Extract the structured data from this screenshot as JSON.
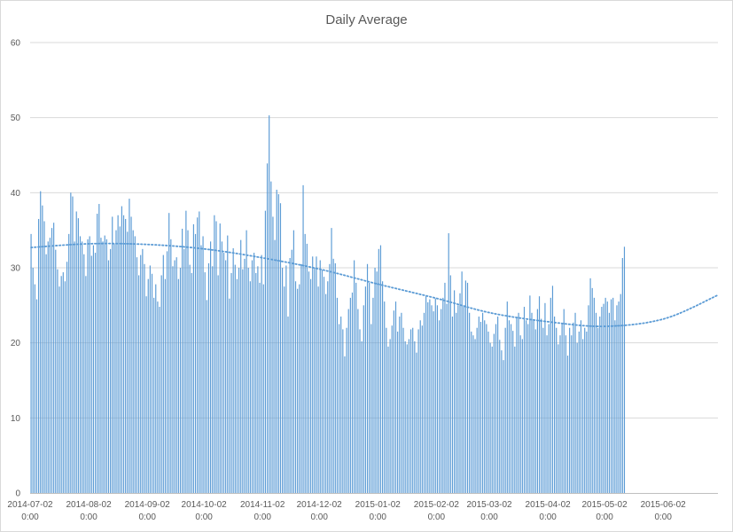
{
  "chart_data": {
    "type": "bar",
    "title": "Daily Average",
    "xlabel": "",
    "ylabel": "",
    "ylim": [
      0,
      60
    ],
    "y_ticks": [
      0,
      10,
      20,
      30,
      40,
      50,
      60
    ],
    "x_range": [
      "2014-07-02",
      "2015-06-30"
    ],
    "x_tick_labels": [
      {
        "date": "2014-07-02",
        "line1": "2014-07-02",
        "line2": "0:00"
      },
      {
        "date": "2014-08-02",
        "line1": "2014-08-02",
        "line2": "0:00"
      },
      {
        "date": "2014-09-02",
        "line1": "2014-09-02",
        "line2": "0:00"
      },
      {
        "date": "2014-10-02",
        "line1": "2014-10-02",
        "line2": "0:00"
      },
      {
        "date": "2014-11-02",
        "line1": "2014-11-02",
        "line2": "0:00"
      },
      {
        "date": "2014-12-02",
        "line1": "2014-12-02",
        "line2": "0:00"
      },
      {
        "date": "2015-01-02",
        "line1": "2015-01-02",
        "line2": "0:00"
      },
      {
        "date": "2015-02-02",
        "line1": "2015-02-02",
        "line2": "0:00"
      },
      {
        "date": "2015-03-02",
        "line1": "2015-03-02",
        "line2": "0:00"
      },
      {
        "date": "2015-04-02",
        "line1": "2015-04-02",
        "line2": "0:00"
      },
      {
        "date": "2015-05-02",
        "line1": "2015-05-02",
        "line2": "0:00"
      },
      {
        "date": "2015-06-02",
        "line1": "2015-06-02",
        "line2": "0:00"
      }
    ],
    "grid": true,
    "legend": "none",
    "bar_color": "#5b9bd5",
    "trendline": {
      "style": "dotted",
      "color": "#5b9bd5",
      "points": [
        {
          "date": "2014-07-02",
          "value": 32.7
        },
        {
          "date": "2014-08-02",
          "value": 33.2
        },
        {
          "date": "2014-09-02",
          "value": 33.1
        },
        {
          "date": "2014-10-02",
          "value": 32.5
        },
        {
          "date": "2014-11-02",
          "value": 31.3
        },
        {
          "date": "2014-12-02",
          "value": 29.8
        },
        {
          "date": "2015-01-02",
          "value": 27.8
        },
        {
          "date": "2015-02-02",
          "value": 25.9
        },
        {
          "date": "2015-03-02",
          "value": 24.0
        },
        {
          "date": "2015-04-02",
          "value": 22.8
        },
        {
          "date": "2015-05-02",
          "value": 22.2
        },
        {
          "date": "2015-06-02",
          "value": 23.2
        },
        {
          "date": "2015-06-30",
          "value": 26.3
        }
      ]
    },
    "series": [
      {
        "start_date": "2014-07-02",
        "interval": "1 day",
        "values": [
          34.5,
          30.0,
          27.8,
          25.8,
          36.5,
          40.2,
          38.3,
          36.2,
          31.8,
          33.5,
          34.0,
          35.3,
          36.0,
          32.4,
          29.8,
          27.5,
          28.9,
          29.4,
          28.2,
          30.8,
          34.5,
          40.0,
          39.5,
          33.5,
          37.5,
          36.6,
          34.2,
          33.5,
          31.8,
          28.9,
          33.8,
          34.2,
          31.6,
          33.0,
          32.0,
          37.2,
          38.5,
          34.0,
          33.5,
          34.3,
          33.8,
          31.0,
          32.5,
          36.8,
          33.2,
          35.0,
          37.0,
          35.5,
          38.2,
          37.0,
          36.5,
          34.8,
          39.2,
          36.8,
          35.0,
          34.2,
          31.4,
          29.0,
          31.7,
          32.5,
          30.5,
          26.2,
          28.5,
          30.3,
          29.2,
          26.0,
          27.8,
          25.5,
          24.8,
          29.0,
          31.7,
          28.5,
          32.2,
          37.3,
          33.8,
          30.2,
          31.0,
          31.4,
          28.5,
          30.0,
          35.2,
          32.5,
          37.6,
          35.0,
          30.4,
          29.3,
          35.8,
          34.5,
          36.7,
          37.5,
          33.0,
          34.2,
          29.4,
          25.7,
          30.6,
          33.5,
          30.2,
          37.0,
          36.2,
          29.0,
          35.9,
          33.5,
          32.0,
          31.0,
          34.3,
          25.9,
          29.3,
          32.6,
          30.4,
          28.5,
          30.0,
          33.7,
          29.8,
          31.2,
          35.0,
          30.0,
          28.2,
          31.0,
          32.0,
          29.3,
          30.2,
          28.0,
          31.7,
          27.8,
          37.6,
          43.9,
          50.3,
          41.5,
          36.8,
          33.7,
          40.4,
          39.8,
          38.6,
          30.0,
          27.5,
          30.3,
          23.5,
          31.3,
          32.4,
          35.0,
          28.2,
          27.2,
          27.8,
          30.5,
          41.0,
          34.5,
          33.2,
          29.5,
          28.5,
          31.5,
          30.0,
          31.5,
          27.5,
          31.0,
          29.7,
          28.8,
          26.5,
          28.2,
          30.5,
          35.3,
          31.2,
          30.6,
          26.0,
          22.5,
          23.5,
          21.8,
          18.2,
          22.0,
          24.5,
          26.0,
          26.7,
          31.0,
          28.0,
          24.5,
          21.8,
          20.2,
          25.0,
          27.5,
          30.5,
          28.0,
          22.5,
          26.0,
          30.0,
          29.5,
          32.5,
          33.0,
          28.2,
          25.5,
          22.0,
          19.5,
          20.5,
          22.3,
          24.3,
          25.5,
          21.5,
          23.5,
          24.0,
          22.0,
          20.2,
          19.8,
          20.5,
          21.8,
          22.0,
          20.2,
          18.7,
          21.8,
          23.0,
          22.3,
          24.0,
          26.2,
          25.4,
          25.8,
          25.0,
          24.2,
          25.9,
          25.0,
          23.0,
          24.5,
          26.0,
          28.0,
          25.2,
          34.6,
          29.0,
          23.5,
          27.0,
          24.0,
          25.0,
          26.6,
          29.5,
          25.0,
          28.3,
          28.0,
          24.0,
          21.5,
          21.0,
          20.5,
          22.0,
          23.5,
          22.8,
          24.0,
          23.0,
          22.5,
          21.5,
          20.0,
          19.5,
          21.2,
          22.5,
          23.5,
          20.4,
          19.0,
          17.7,
          22.0,
          25.5,
          23.0,
          22.5,
          21.6,
          19.5,
          23.4,
          24.0,
          21.0,
          20.5,
          24.8,
          23.0,
          22.5,
          26.3,
          24.0,
          23.0,
          21.8,
          24.5,
          26.2,
          23.2,
          22.0,
          25.3,
          21.0,
          22.5,
          26.0,
          27.6,
          23.5,
          22.0,
          19.8,
          21.0,
          22.5,
          24.5,
          21.0,
          18.3,
          22.0,
          21.0,
          22.7,
          24.0,
          20.0,
          21.5,
          23.0,
          20.5,
          22.0,
          21.5,
          25.0,
          28.6,
          27.3,
          26.0,
          24.0,
          22.0,
          23.5,
          24.8,
          25.2,
          26.0,
          25.5,
          24.0,
          25.8,
          26.0,
          23.0,
          25.0,
          25.5,
          26.5,
          31.3,
          32.8
        ]
      }
    ]
  }
}
